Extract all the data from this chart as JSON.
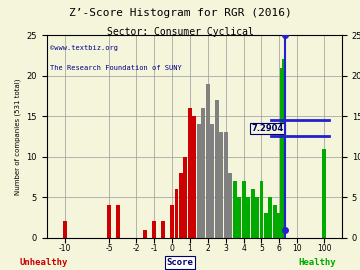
{
  "title": "Z’-Score Histogram for RGR (2016)",
  "subtitle": "Sector: Consumer Cyclical",
  "ylabel": "Number of companies (531 total)",
  "watermark1": "©www.textbiz.org",
  "watermark2": "The Research Foundation of SUNY",
  "unhealthy_label": "Unhealthy",
  "healthy_label": "Healthy",
  "score_label": "Score",
  "marker_value": 7.2904,
  "marker_label": "7.2904",
  "ylim": [
    0,
    25
  ],
  "yticks": [
    0,
    5,
    10,
    15,
    20,
    25
  ],
  "bar_data": [
    [
      -12,
      2,
      "#cc0000"
    ],
    [
      -5,
      4,
      "#cc0000"
    ],
    [
      -4,
      4,
      "#cc0000"
    ],
    [
      -1.5,
      1,
      "#cc0000"
    ],
    [
      -1,
      2,
      "#cc0000"
    ],
    [
      -0.5,
      2,
      "#cc0000"
    ],
    [
      0,
      4,
      "#cc0000"
    ],
    [
      0.25,
      6,
      "#cc0000"
    ],
    [
      0.5,
      8,
      "#cc0000"
    ],
    [
      0.75,
      10,
      "#cc0000"
    ],
    [
      1.0,
      16,
      "#cc0000"
    ],
    [
      1.25,
      15,
      "#cc0000"
    ],
    [
      1.5,
      14,
      "#808080"
    ],
    [
      1.75,
      16,
      "#808080"
    ],
    [
      2.0,
      19,
      "#808080"
    ],
    [
      2.25,
      14,
      "#808080"
    ],
    [
      2.5,
      17,
      "#808080"
    ],
    [
      2.75,
      13,
      "#808080"
    ],
    [
      3.0,
      13,
      "#808080"
    ],
    [
      3.25,
      8,
      "#808080"
    ],
    [
      3.5,
      7,
      "#00aa00"
    ],
    [
      3.75,
      5,
      "#00aa00"
    ],
    [
      4.0,
      7,
      "#00aa00"
    ],
    [
      4.25,
      5,
      "#00aa00"
    ],
    [
      4.5,
      6,
      "#00aa00"
    ],
    [
      4.75,
      5,
      "#00aa00"
    ],
    [
      5.0,
      7,
      "#00aa00"
    ],
    [
      5.25,
      3,
      "#00aa00"
    ],
    [
      5.5,
      5,
      "#00aa00"
    ],
    [
      5.75,
      4,
      "#00aa00"
    ],
    [
      6.0,
      3,
      "#00aa00"
    ],
    [
      6.5,
      21,
      "#00aa00"
    ],
    [
      7.0,
      22,
      "#00aa00"
    ],
    [
      100,
      11,
      "#00aa00"
    ]
  ],
  "xtick_scores": [
    -10,
    -5,
    -2,
    -1,
    0,
    1,
    2,
    3,
    4,
    5,
    6,
    10,
    100
  ],
  "xtick_display": [
    -8.5,
    -6.0,
    -4.5,
    -3.5,
    -2.5,
    -1.5,
    -0.5,
    0.5,
    1.5,
    2.5,
    3.5,
    4.5,
    6.0
  ],
  "bar_width": 0.22,
  "background_color": "#f5f5dc",
  "grid_color": "#999999",
  "title_color": "#000000",
  "subtitle_color": "#000000",
  "watermark1_color": "#000088",
  "watermark2_color": "#000088",
  "unhealthy_color": "#cc0000",
  "healthy_color": "#00aa00",
  "score_color": "#000066",
  "marker_line_color": "#2222cc",
  "marker_hline_color": "#2222cc",
  "marker_text_color": "#000066",
  "xlim": [
    -9.5,
    7.0
  ]
}
